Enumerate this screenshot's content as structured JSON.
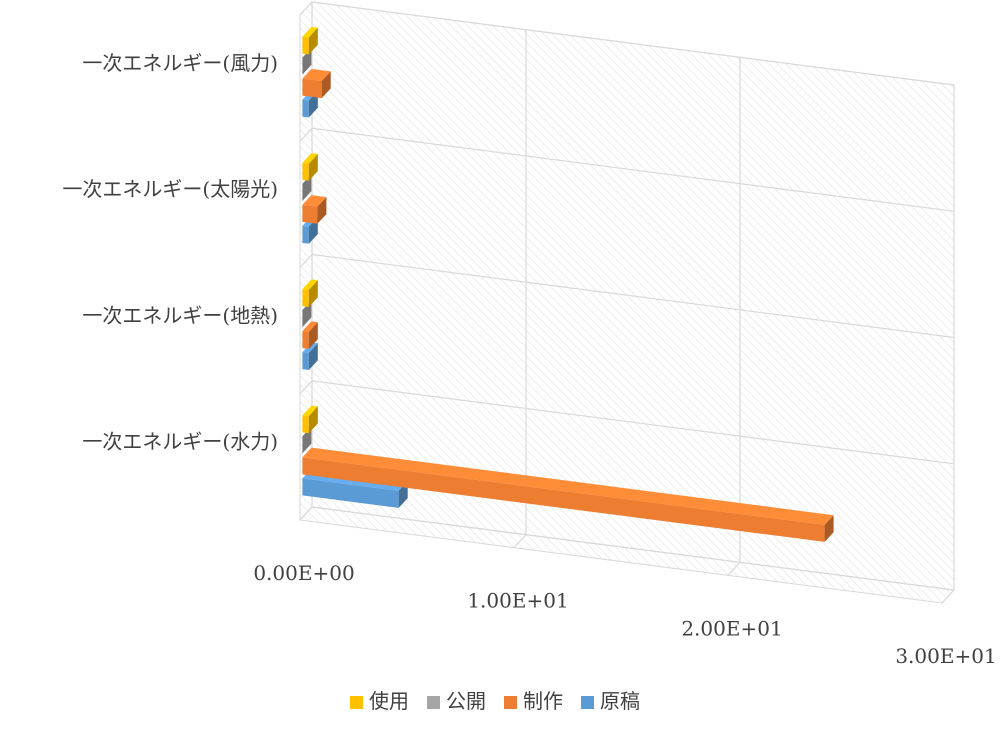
{
  "chart_data": {
    "type": "bar",
    "orientation": "horizontal",
    "style": "3d-clustered",
    "categories": [
      "一次エネルギー(水力)",
      "一次エネルギー(地熱)",
      "一次エネルギー(太陽光)",
      "一次エネルギー(風力)"
    ],
    "series": [
      {
        "name": "原稿",
        "color": "#5b9bd5",
        "values": [
          4.5,
          0.3,
          0.3,
          0.3
        ]
      },
      {
        "name": "制作",
        "color": "#ed7d31",
        "values": [
          24.4,
          0.3,
          0.7,
          0.9
        ]
      },
      {
        "name": "公開",
        "color": "#a5a5a5",
        "values": [
          0,
          0,
          0,
          0
        ]
      },
      {
        "name": "使用",
        "color": "#ffc000",
        "values": [
          0.3,
          0.3,
          0.3,
          0.3
        ]
      }
    ],
    "xlim": [
      0,
      30
    ],
    "xticks": [
      0,
      10,
      20,
      30
    ],
    "xtick_labels": [
      "0.00E+00",
      "1.00E+01",
      "2.00E+01",
      "3.00E+01"
    ],
    "legend": [
      "使用",
      "公開",
      "制作",
      "原稿"
    ],
    "legend_position": "bottom",
    "gridlines": true,
    "title": "",
    "xlabel": "",
    "ylabel": ""
  }
}
